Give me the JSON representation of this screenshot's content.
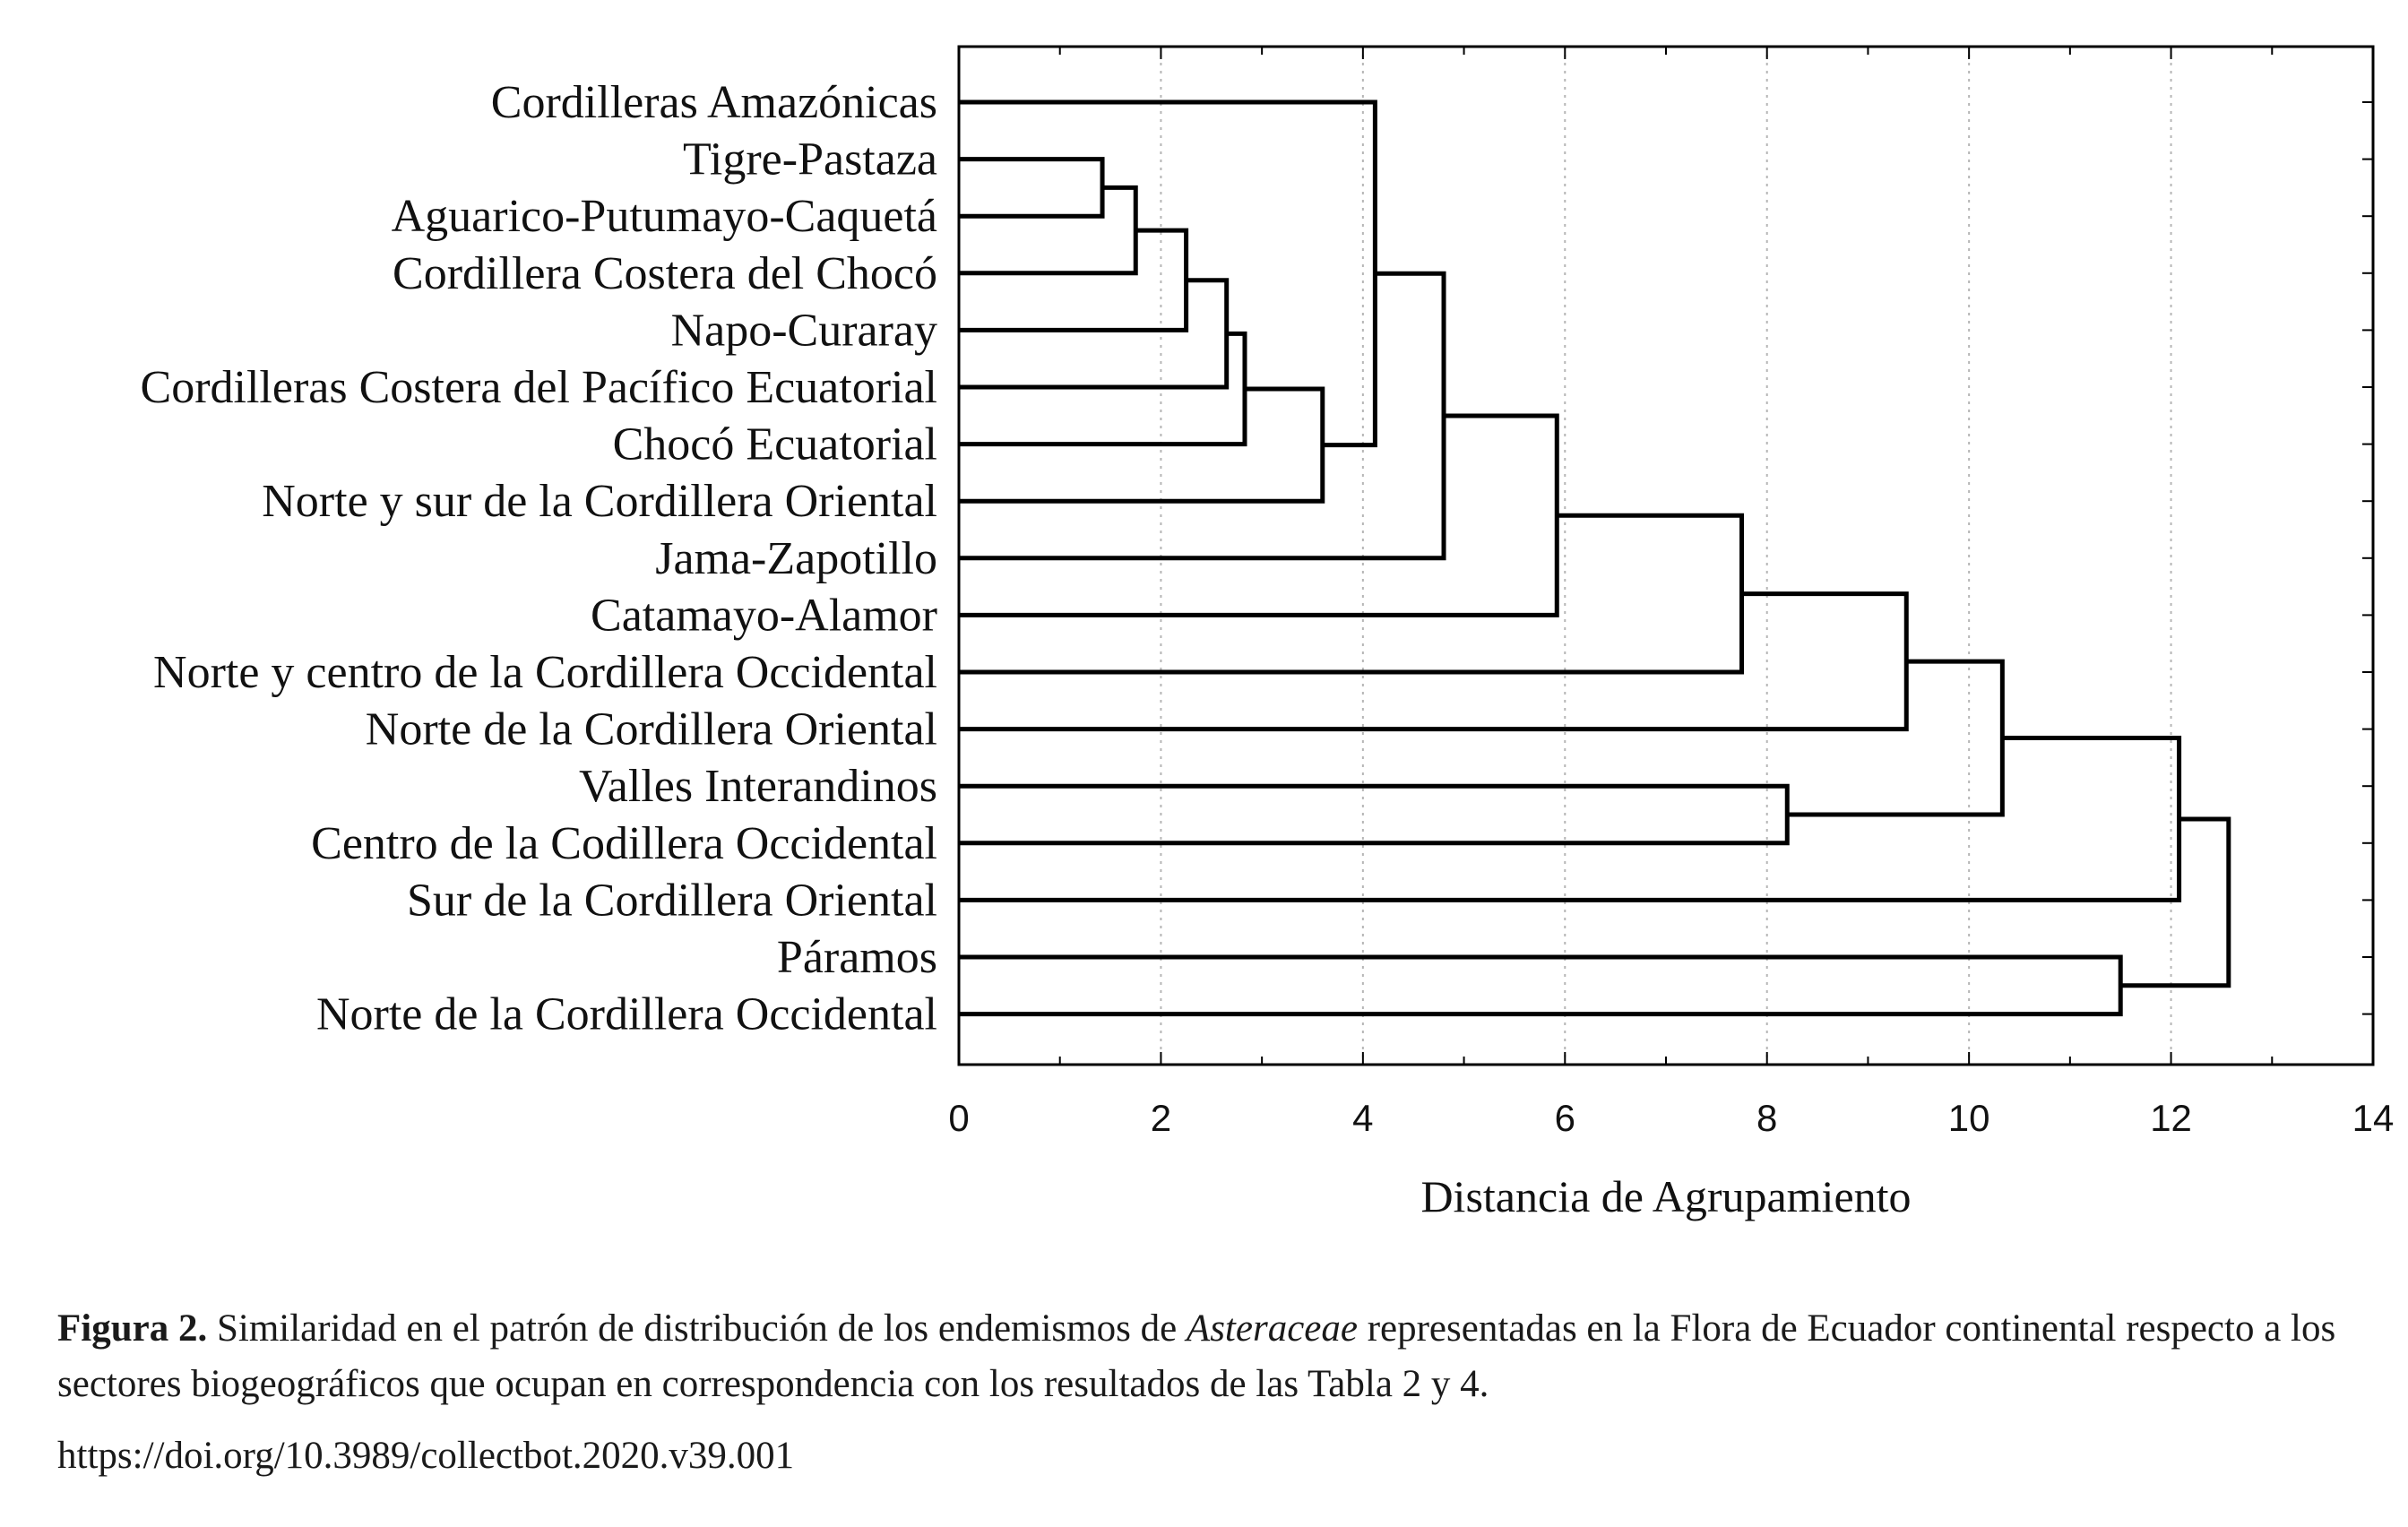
{
  "chart_data": {
    "type": "dendrogram",
    "orientation": "horizontal",
    "xlabel": "Distancia de Agrupamiento",
    "xlim": [
      0,
      14
    ],
    "x_ticks": [
      0,
      2,
      4,
      6,
      8,
      10,
      12,
      14
    ],
    "grid": "vertical dotted",
    "leaves": [
      "Cordilleras  Amazónicas",
      "Tigre-Pastaza",
      "Aguarico-Putumayo-Caquetá",
      "Cordillera Costera del Chocó",
      "Napo-Curaray",
      "Cordilleras Costera del Pacífico Ecuatorial",
      "Chocó Ecuatorial",
      "Norte y sur de la Cordillera Oriental",
      "Jama-Zapotillo",
      "Catamayo-Alamor",
      "Norte y centro de la Cordillera Occidental",
      "Norte de la Cordillera Oriental",
      "Valles Interandinos",
      "Centro de la Codillera Occidental",
      "Sur de la Cordillera Oriental",
      "Páramos",
      "Norte de la Cordillera Occidental"
    ],
    "merges": [
      {
        "a": "L1",
        "b": "L2",
        "distance": 1.42
      },
      {
        "a": "N0",
        "b": "L3",
        "distance": 1.75
      },
      {
        "a": "N1",
        "b": "L4",
        "distance": 2.25
      },
      {
        "a": "N2",
        "b": "L5",
        "distance": 2.65
      },
      {
        "a": "N3",
        "b": "L6",
        "distance": 2.83
      },
      {
        "a": "N4",
        "b": "L7",
        "distance": 3.6
      },
      {
        "a": "L0",
        "b": "N5",
        "distance": 4.12
      },
      {
        "a": "N6",
        "b": "L8",
        "distance": 4.8
      },
      {
        "a": "N7",
        "b": "L9",
        "distance": 5.92
      },
      {
        "a": "N8",
        "b": "L10",
        "distance": 7.75
      },
      {
        "a": "N9",
        "b": "L11",
        "distance": 9.38
      },
      {
        "a": "L12",
        "b": "L13",
        "distance": 8.2
      },
      {
        "a": "N10",
        "b": "N11",
        "distance": 10.33
      },
      {
        "a": "N12",
        "b": "L14",
        "distance": 12.08
      },
      {
        "a": "L15",
        "b": "L16",
        "distance": 11.5
      },
      {
        "a": "N13",
        "b": "N14",
        "distance": 12.57
      }
    ]
  },
  "caption": {
    "label": "Figura 2.",
    "text_before": " Similaridad en el patrón de distribución de los endemismos de ",
    "italic": "Asteraceae",
    "text_after": " representadas en la Flora de Ecuador continental respecto a los sectores biogeográficos que ocupan en correspondencia con los resultados de las Tabla 2 y 4.",
    "doi": "https://doi.org/10.3989/collectbot.2020.v39.001"
  }
}
